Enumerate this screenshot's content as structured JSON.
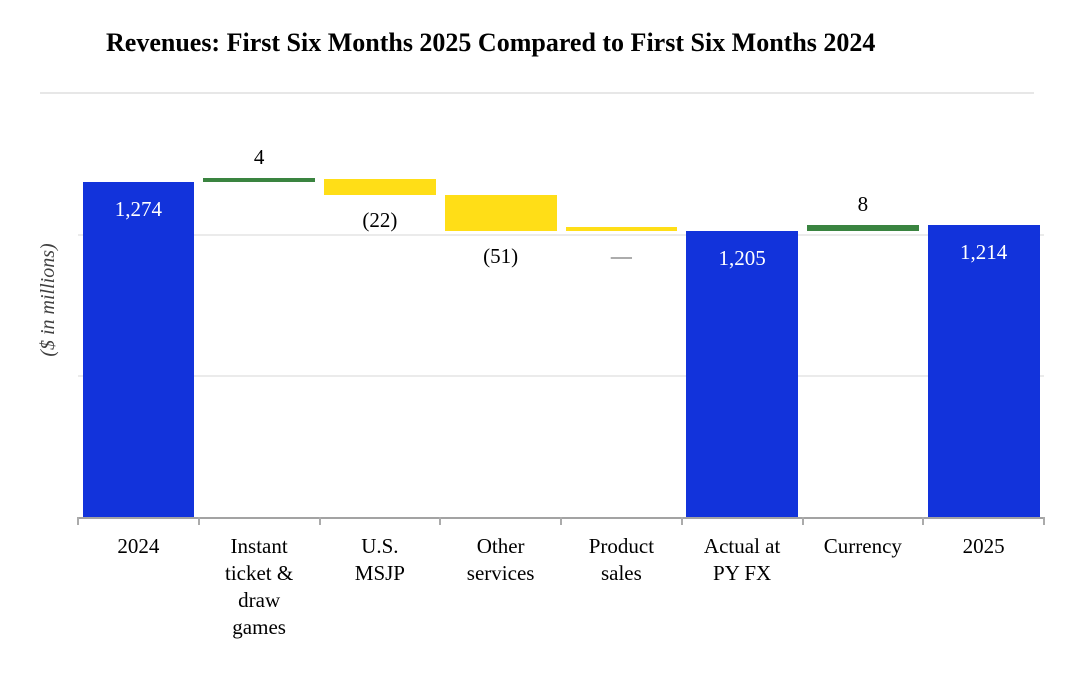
{
  "chart_data": {
    "type": "waterfall",
    "title": "Revenues: First Six Months 2025 Compared to First Six Months 2024",
    "ylabel": "($ in millions)",
    "xlabel": "",
    "ylim": [
      800,
      1400
    ],
    "gridline_values": [
      1000,
      1200
    ],
    "grid_on": true,
    "legend": "none",
    "units": "USD millions",
    "bars": [
      {
        "category": "2024",
        "category_lines": "2024",
        "role": "total",
        "value": 1274,
        "value_label": "1,274",
        "label_position": "inside-top"
      },
      {
        "category": "Instant ticket & draw games",
        "category_lines": "Instant\nticket &\ndraw\ngames",
        "role": "increase",
        "value": 4,
        "value_label": "4",
        "label_position": "above"
      },
      {
        "category": "U.S. MSJP",
        "category_lines": "U.S.\nMSJP",
        "role": "decrease",
        "value": -22,
        "value_label": "(22)",
        "label_position": "below"
      },
      {
        "category": "Other services",
        "category_lines": "Other\nservices",
        "role": "decrease",
        "value": -51,
        "value_label": "(51)",
        "label_position": "below"
      },
      {
        "category": "Product sales",
        "category_lines": "Product\nsales",
        "role": "zero",
        "value": 0,
        "value_label": "—",
        "label_position": "below"
      },
      {
        "category": "Actual at PY FX",
        "category_lines": "Actual at\nPY FX",
        "role": "total",
        "value": 1205,
        "value_label": "1,205",
        "label_position": "inside-top"
      },
      {
        "category": "Currency",
        "category_lines": "Currency",
        "role": "increase",
        "value": 8,
        "value_label": "8",
        "label_position": "above"
      },
      {
        "category": "2025",
        "category_lines": "2025",
        "role": "total",
        "value": 1214,
        "value_label": "1,214",
        "label_position": "inside-top"
      }
    ],
    "colors": {
      "total": "#1233db",
      "increase": "#3a8440",
      "decrease": "#ffde17",
      "zero": "#ffde17",
      "value_label_inside": "#ffffff",
      "value_label_outside": "#000000",
      "zero_dash_label": "#595959",
      "gridline": "#ebebeb",
      "axis": "#a3a3a3",
      "title": "#000000"
    }
  }
}
